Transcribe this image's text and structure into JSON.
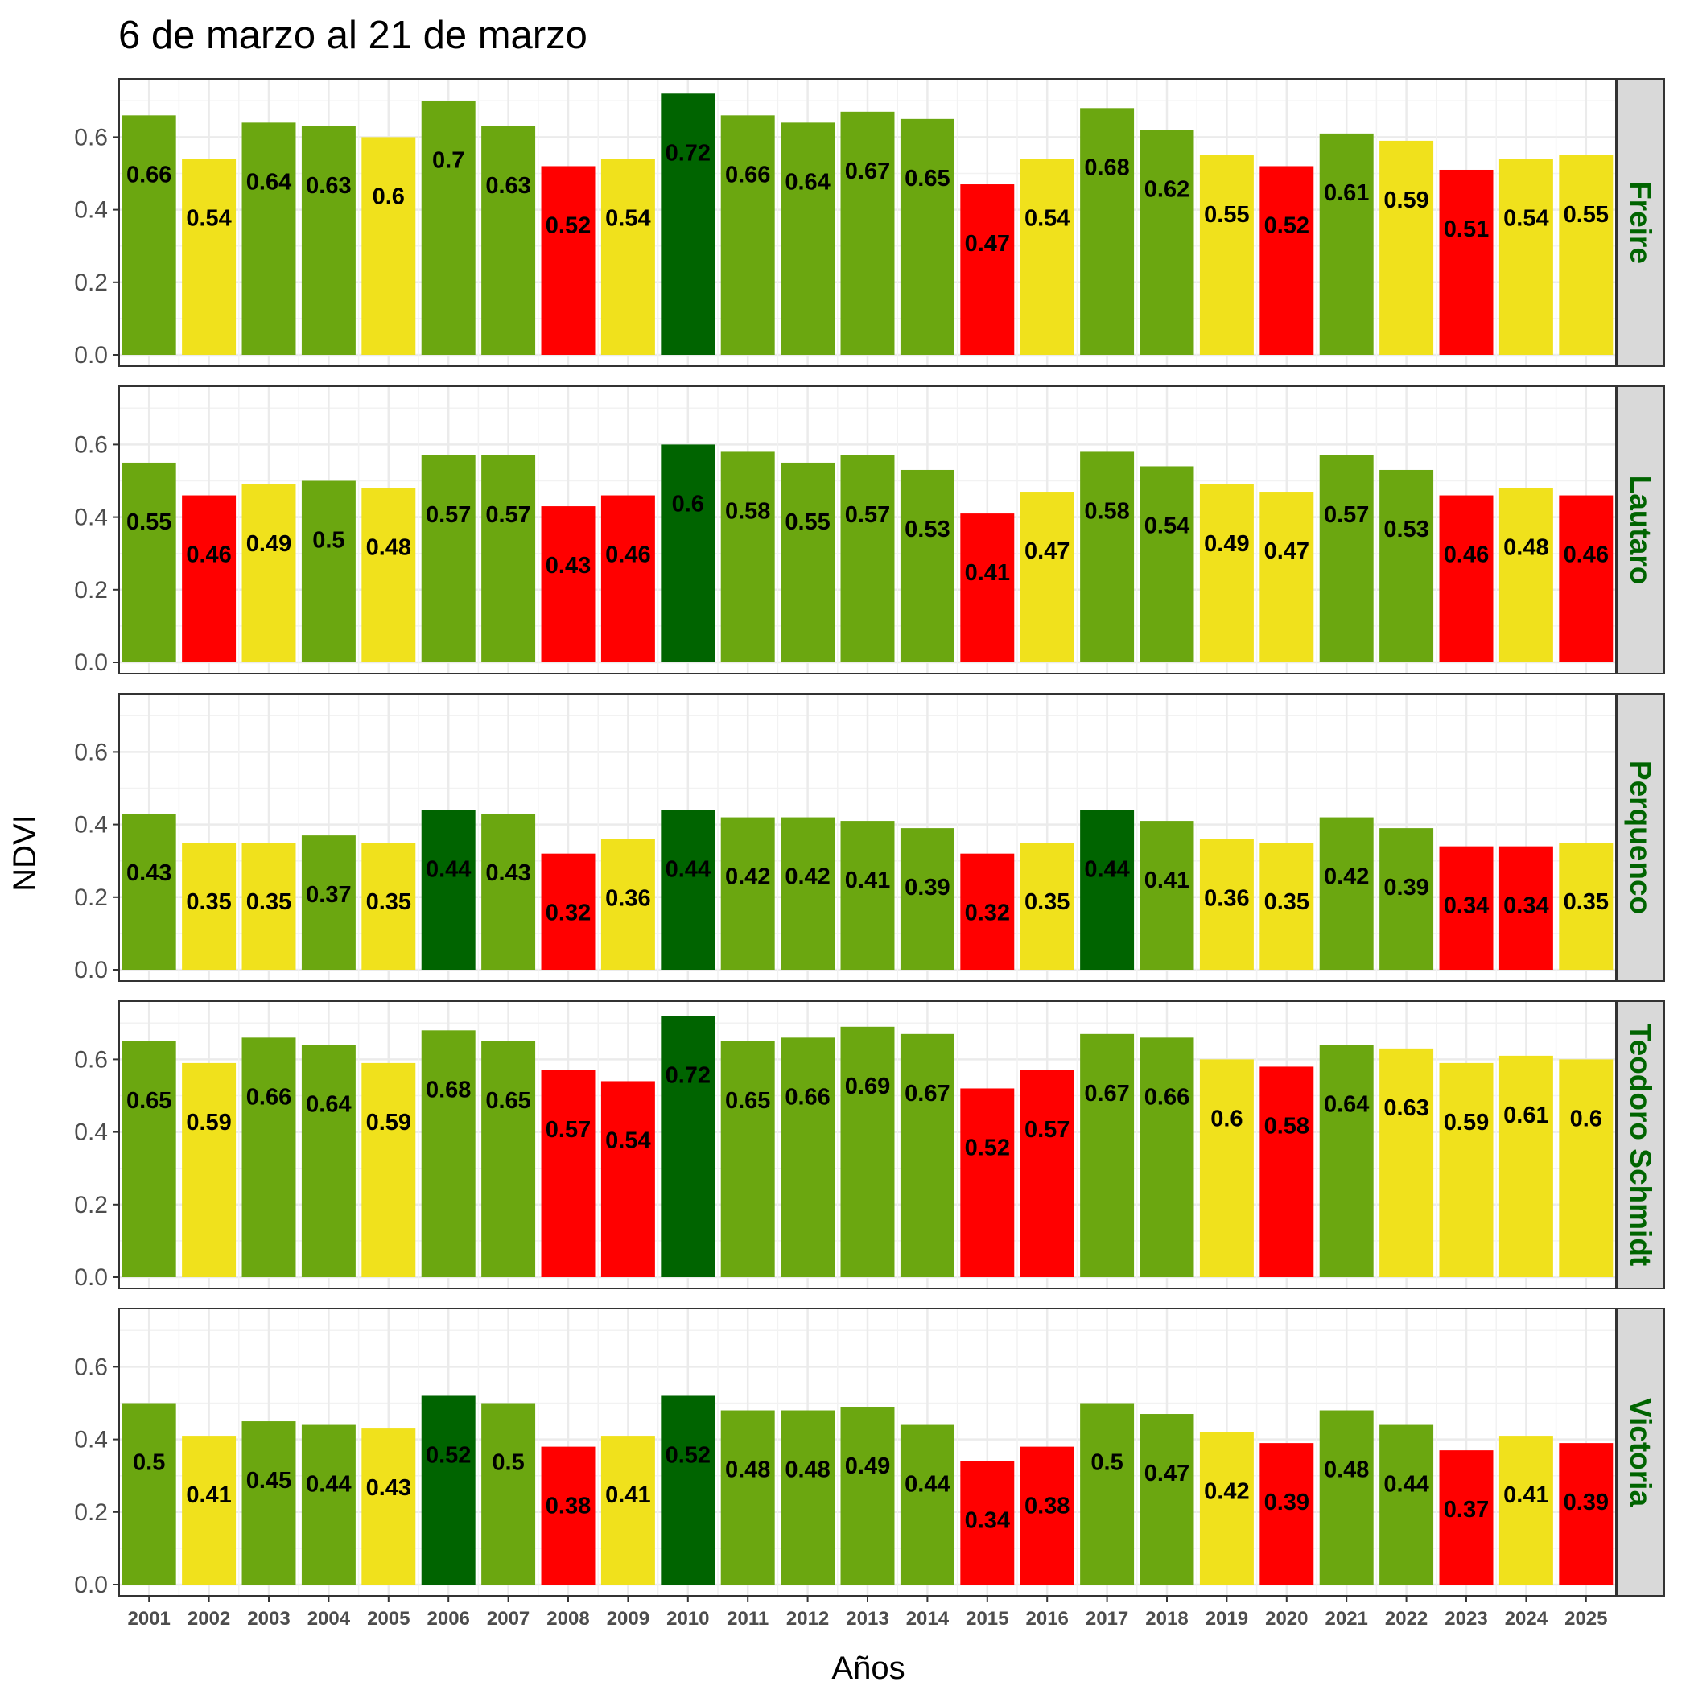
{
  "chart_data": {
    "type": "bar",
    "title": "6 de marzo al 21 de marzo",
    "xlabel": "Años",
    "ylabel": "NDVI",
    "ylim": [
      0,
      0.75
    ],
    "yticks": [
      "0.0",
      "0.2",
      "0.4",
      "0.6"
    ],
    "grid": true,
    "categories": [
      "2001",
      "2002",
      "2003",
      "2004",
      "2005",
      "2006",
      "2007",
      "2008",
      "2009",
      "2010",
      "2011",
      "2012",
      "2013",
      "2014",
      "2015",
      "2016",
      "2017",
      "2018",
      "2019",
      "2020",
      "2021",
      "2022",
      "2023",
      "2024",
      "2025"
    ],
    "colors": {
      "dark_green": "#006400",
      "green": "#6ba710",
      "yellow": "#f0e11c",
      "red": "#ff0000"
    },
    "panels": [
      {
        "name": "Freire",
        "values": [
          0.66,
          0.54,
          0.64,
          0.63,
          0.6,
          0.7,
          0.63,
          0.52,
          0.54,
          0.72,
          0.66,
          0.64,
          0.67,
          0.65,
          0.47,
          0.54,
          0.68,
          0.62,
          0.55,
          0.52,
          0.61,
          0.59,
          0.51,
          0.54,
          0.55
        ],
        "labels": [
          "0.66",
          "0.54",
          "0.64",
          "0.63",
          "0.6",
          "0.7",
          "0.63",
          "0.52",
          "0.54",
          "0.72",
          "0.66",
          "0.64",
          "0.67",
          "0.65",
          "0.47",
          "0.54",
          "0.68",
          "0.62",
          "0.55",
          "0.52",
          "0.61",
          "0.59",
          "0.51",
          "0.54",
          "0.55"
        ],
        "classes": [
          "green",
          "yellow",
          "green",
          "green",
          "yellow",
          "green",
          "green",
          "red",
          "yellow",
          "dark_green",
          "green",
          "green",
          "green",
          "green",
          "red",
          "yellow",
          "green",
          "green",
          "yellow",
          "red",
          "green",
          "yellow",
          "red",
          "yellow",
          "yellow"
        ]
      },
      {
        "name": "Lautaro",
        "values": [
          0.55,
          0.46,
          0.49,
          0.5,
          0.48,
          0.57,
          0.57,
          0.43,
          0.46,
          0.6,
          0.58,
          0.55,
          0.57,
          0.53,
          0.41,
          0.47,
          0.58,
          0.54,
          0.49,
          0.47,
          0.57,
          0.53,
          0.46,
          0.48,
          0.46
        ],
        "labels": [
          "0.55",
          "0.46",
          "0.49",
          "0.5",
          "0.48",
          "0.57",
          "0.57",
          "0.43",
          "0.46",
          "0.6",
          "0.58",
          "0.55",
          "0.57",
          "0.53",
          "0.41",
          "0.47",
          "0.58",
          "0.54",
          "0.49",
          "0.47",
          "0.57",
          "0.53",
          "0.46",
          "0.48",
          "0.46"
        ],
        "classes": [
          "green",
          "red",
          "yellow",
          "green",
          "yellow",
          "green",
          "green",
          "red",
          "red",
          "dark_green",
          "green",
          "green",
          "green",
          "green",
          "red",
          "yellow",
          "green",
          "green",
          "yellow",
          "yellow",
          "green",
          "green",
          "red",
          "yellow",
          "red"
        ]
      },
      {
        "name": "Perquenco",
        "values": [
          0.43,
          0.35,
          0.35,
          0.37,
          0.35,
          0.44,
          0.43,
          0.32,
          0.36,
          0.44,
          0.42,
          0.42,
          0.41,
          0.39,
          0.32,
          0.35,
          0.44,
          0.41,
          0.36,
          0.35,
          0.42,
          0.39,
          0.34,
          0.34,
          0.35
        ],
        "labels": [
          "0.43",
          "0.35",
          "0.35",
          "0.37",
          "0.35",
          "0.44",
          "0.43",
          "0.32",
          "0.36",
          "0.44",
          "0.42",
          "0.42",
          "0.41",
          "0.39",
          "0.32",
          "0.35",
          "0.44",
          "0.41",
          "0.36",
          "0.35",
          "0.42",
          "0.39",
          "0.34",
          "0.34",
          "0.35"
        ],
        "classes": [
          "green",
          "yellow",
          "yellow",
          "green",
          "yellow",
          "dark_green",
          "green",
          "red",
          "yellow",
          "dark_green",
          "green",
          "green",
          "green",
          "green",
          "red",
          "yellow",
          "dark_green",
          "green",
          "yellow",
          "yellow",
          "green",
          "green",
          "red",
          "red",
          "yellow"
        ]
      },
      {
        "name": "Teodoro Schmidt",
        "values": [
          0.65,
          0.59,
          0.66,
          0.64,
          0.59,
          0.68,
          0.65,
          0.57,
          0.54,
          0.72,
          0.65,
          0.66,
          0.69,
          0.67,
          0.52,
          0.57,
          0.67,
          0.66,
          0.6,
          0.58,
          0.64,
          0.63,
          0.59,
          0.61,
          0.6
        ],
        "labels": [
          "0.65",
          "0.59",
          "0.66",
          "0.64",
          "0.59",
          "0.68",
          "0.65",
          "0.57",
          "0.54",
          "0.72",
          "0.65",
          "0.66",
          "0.69",
          "0.67",
          "0.52",
          "0.57",
          "0.67",
          "0.66",
          "0.6",
          "0.58",
          "0.64",
          "0.63",
          "0.59",
          "0.61",
          "0.6"
        ],
        "classes": [
          "green",
          "yellow",
          "green",
          "green",
          "yellow",
          "green",
          "green",
          "red",
          "red",
          "dark_green",
          "green",
          "green",
          "green",
          "green",
          "red",
          "red",
          "green",
          "green",
          "yellow",
          "red",
          "green",
          "yellow",
          "yellow",
          "yellow",
          "yellow"
        ]
      },
      {
        "name": "Victoria",
        "values": [
          0.5,
          0.41,
          0.45,
          0.44,
          0.43,
          0.52,
          0.5,
          0.38,
          0.41,
          0.52,
          0.48,
          0.48,
          0.49,
          0.44,
          0.34,
          0.38,
          0.5,
          0.47,
          0.42,
          0.39,
          0.48,
          0.44,
          0.37,
          0.41,
          0.39
        ],
        "labels": [
          "0.5",
          "0.41",
          "0.45",
          "0.44",
          "0.43",
          "0.52",
          "0.5",
          "0.38",
          "0.41",
          "0.52",
          "0.48",
          "0.48",
          "0.49",
          "0.44",
          "0.34",
          "0.38",
          "0.5",
          "0.47",
          "0.42",
          "0.39",
          "0.48",
          "0.44",
          "0.37",
          "0.41",
          "0.39"
        ],
        "classes": [
          "green",
          "yellow",
          "green",
          "green",
          "yellow",
          "dark_green",
          "green",
          "red",
          "yellow",
          "dark_green",
          "green",
          "green",
          "green",
          "green",
          "red",
          "red",
          "green",
          "green",
          "yellow",
          "red",
          "green",
          "green",
          "red",
          "yellow",
          "red"
        ]
      }
    ]
  }
}
